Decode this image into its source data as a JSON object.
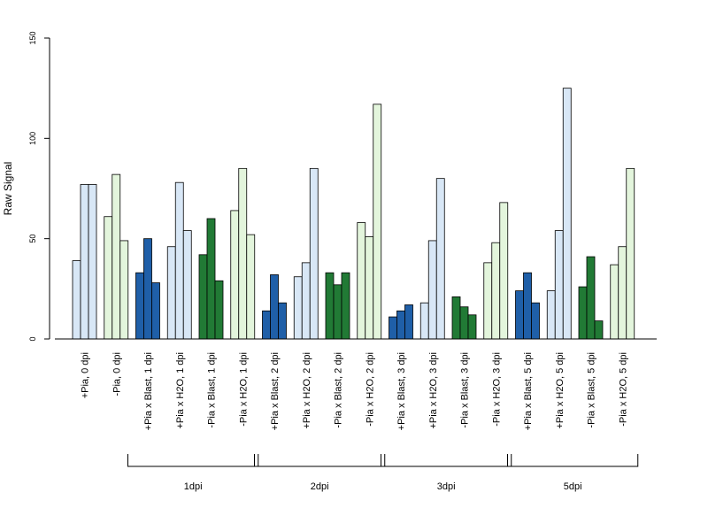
{
  "chart_data": {
    "type": "bar",
    "ylabel": "Raw Signal",
    "ylim": [
      0,
      150
    ],
    "yticks": [
      0,
      50,
      100,
      150
    ],
    "grid": false,
    "colors": {
      "light_blue": "#d8e7f6",
      "dark_blue": "#1f5fa8",
      "light_green": "#e3f5dc",
      "dark_green": "#217a35"
    },
    "categories": [
      {
        "label": "+Pia, 0 dpi",
        "color": "light_blue",
        "values": [
          39,
          77,
          77
        ]
      },
      {
        "label": "-Pia, 0 dpi",
        "color": "light_green",
        "values": [
          61,
          82,
          49
        ]
      },
      {
        "label": "+Pia x Blast, 1 dpi",
        "color": "dark_blue",
        "values": [
          33,
          50,
          28
        ]
      },
      {
        "label": "+Pia x H2O, 1 dpi",
        "color": "light_blue",
        "values": [
          46,
          78,
          54
        ]
      },
      {
        "label": "-Pia x Blast, 1 dpi",
        "color": "dark_green",
        "values": [
          42,
          60,
          29
        ]
      },
      {
        "label": "-Pia x H2O, 1 dpi",
        "color": "light_green",
        "values": [
          64,
          85,
          52
        ]
      },
      {
        "label": "+Pia x Blast, 2 dpi",
        "color": "dark_blue",
        "values": [
          14,
          32,
          18
        ]
      },
      {
        "label": "+Pia x H2O, 2 dpi",
        "color": "light_blue",
        "values": [
          31,
          38,
          85
        ]
      },
      {
        "label": "-Pia x Blast, 2 dpi",
        "color": "dark_green",
        "values": [
          33,
          27,
          33
        ]
      },
      {
        "label": "-Pia x H2O, 2 dpi",
        "color": "light_green",
        "values": [
          58,
          51,
          117
        ]
      },
      {
        "label": "+Pia x Blast, 3 dpi",
        "color": "dark_blue",
        "values": [
          11,
          14,
          17
        ]
      },
      {
        "label": "+Pia x H2O, 3 dpi",
        "color": "light_blue",
        "values": [
          18,
          49,
          80
        ]
      },
      {
        "label": "-Pia x Blast, 3 dpi",
        "color": "dark_green",
        "values": [
          21,
          16,
          12
        ]
      },
      {
        "label": "-Pia x H2O, 3 dpi",
        "color": "light_green",
        "values": [
          38,
          48,
          68
        ]
      },
      {
        "label": "+Pia x Blast, 5 dpi",
        "color": "dark_blue",
        "values": [
          24,
          33,
          18
        ]
      },
      {
        "label": "+Pia x H2O, 5 dpi",
        "color": "light_blue",
        "values": [
          24,
          54,
          125
        ]
      },
      {
        "label": "-Pia x Blast, 5 dpi",
        "color": "dark_green",
        "values": [
          26,
          41,
          9
        ]
      },
      {
        "label": "-Pia x H2O, 5 dpi",
        "color": "light_green",
        "values": [
          37,
          46,
          85
        ]
      }
    ],
    "groups": [
      {
        "label": "1dpi",
        "categories": [
          2,
          5
        ]
      },
      {
        "label": "2dpi",
        "categories": [
          6,
          9
        ]
      },
      {
        "label": "3dpi",
        "categories": [
          10,
          13
        ]
      },
      {
        "label": "5dpi",
        "categories": [
          14,
          17
        ]
      }
    ]
  }
}
